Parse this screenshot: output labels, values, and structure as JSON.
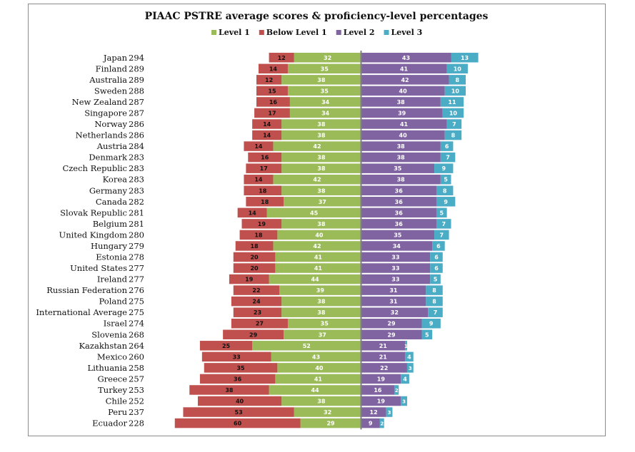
{
  "chart_data": {
    "type": "bar",
    "title": "PIAAC PSTRE average scores & proficiency-level percentages",
    "legend_position": "top",
    "grid": false,
    "categories": [
      "Japan",
      "Finland",
      "Australia",
      "Sweden",
      "New Zealand",
      "Singapore",
      "Norway",
      "Netherlands",
      "Austria",
      "Denmark",
      "Czech Republic",
      "Korea",
      "Germany",
      "Canada",
      "Slovak Republic",
      "Belgium",
      "United Kingdom",
      "Hungary",
      "Estonia",
      "United States",
      "Ireland",
      "Russian Federation",
      "Poland",
      "International Average",
      "Israel",
      "Slovenia",
      "Kazakhstan",
      "Mexico",
      "Lithuania",
      "Greece",
      "Turkey",
      "Chile",
      "Peru",
      "Ecuador"
    ],
    "scores": [
      294,
      289,
      289,
      288,
      287,
      287,
      286,
      286,
      284,
      283,
      283,
      283,
      283,
      282,
      281,
      281,
      280,
      279,
      278,
      277,
      277,
      276,
      275,
      275,
      274,
      268,
      264,
      260,
      258,
      257,
      253,
      252,
      237,
      228
    ],
    "series": [
      {
        "name": "Level 1",
        "color": "#9BBB59",
        "side": "left",
        "label_color": "#ffffff",
        "values": [
          32,
          35,
          38,
          35,
          34,
          34,
          38,
          38,
          42,
          38,
          38,
          42,
          38,
          37,
          45,
          38,
          40,
          42,
          41,
          41,
          44,
          39,
          38,
          38,
          35,
          37,
          52,
          43,
          40,
          41,
          44,
          38,
          32,
          29
        ]
      },
      {
        "name": "Below Level 1",
        "color": "#C0504D",
        "side": "left",
        "label_color": "#111111",
        "values": [
          12,
          14,
          12,
          15,
          16,
          17,
          14,
          14,
          14,
          16,
          17,
          14,
          18,
          18,
          14,
          19,
          18,
          18,
          20,
          20,
          19,
          22,
          24,
          23,
          27,
          29,
          25,
          33,
          35,
          36,
          38,
          40,
          53,
          60
        ]
      },
      {
        "name": "Level 2",
        "color": "#8064A2",
        "side": "right",
        "label_color": "#ffffff",
        "values": [
          43,
          41,
          42,
          40,
          38,
          39,
          41,
          40,
          38,
          38,
          35,
          38,
          36,
          36,
          36,
          36,
          35,
          34,
          33,
          33,
          33,
          31,
          31,
          32,
          29,
          29,
          21,
          21,
          22,
          19,
          16,
          19,
          12,
          9
        ]
      },
      {
        "name": "Level 3",
        "color": "#4BACC6",
        "side": "right",
        "label_color": "#ffffff",
        "values": [
          13,
          10,
          8,
          10,
          11,
          10,
          7,
          8,
          6,
          7,
          9,
          5,
          8,
          9,
          5,
          7,
          7,
          6,
          6,
          6,
          5,
          8,
          8,
          7,
          9,
          5,
          1,
          4,
          3,
          4,
          2,
          3,
          3,
          2
        ]
      }
    ],
    "legend_order": [
      "Level 1",
      "Below Level 1",
      "Level 2",
      "Level 3"
    ],
    "axis_color": "#7f7f7f"
  }
}
